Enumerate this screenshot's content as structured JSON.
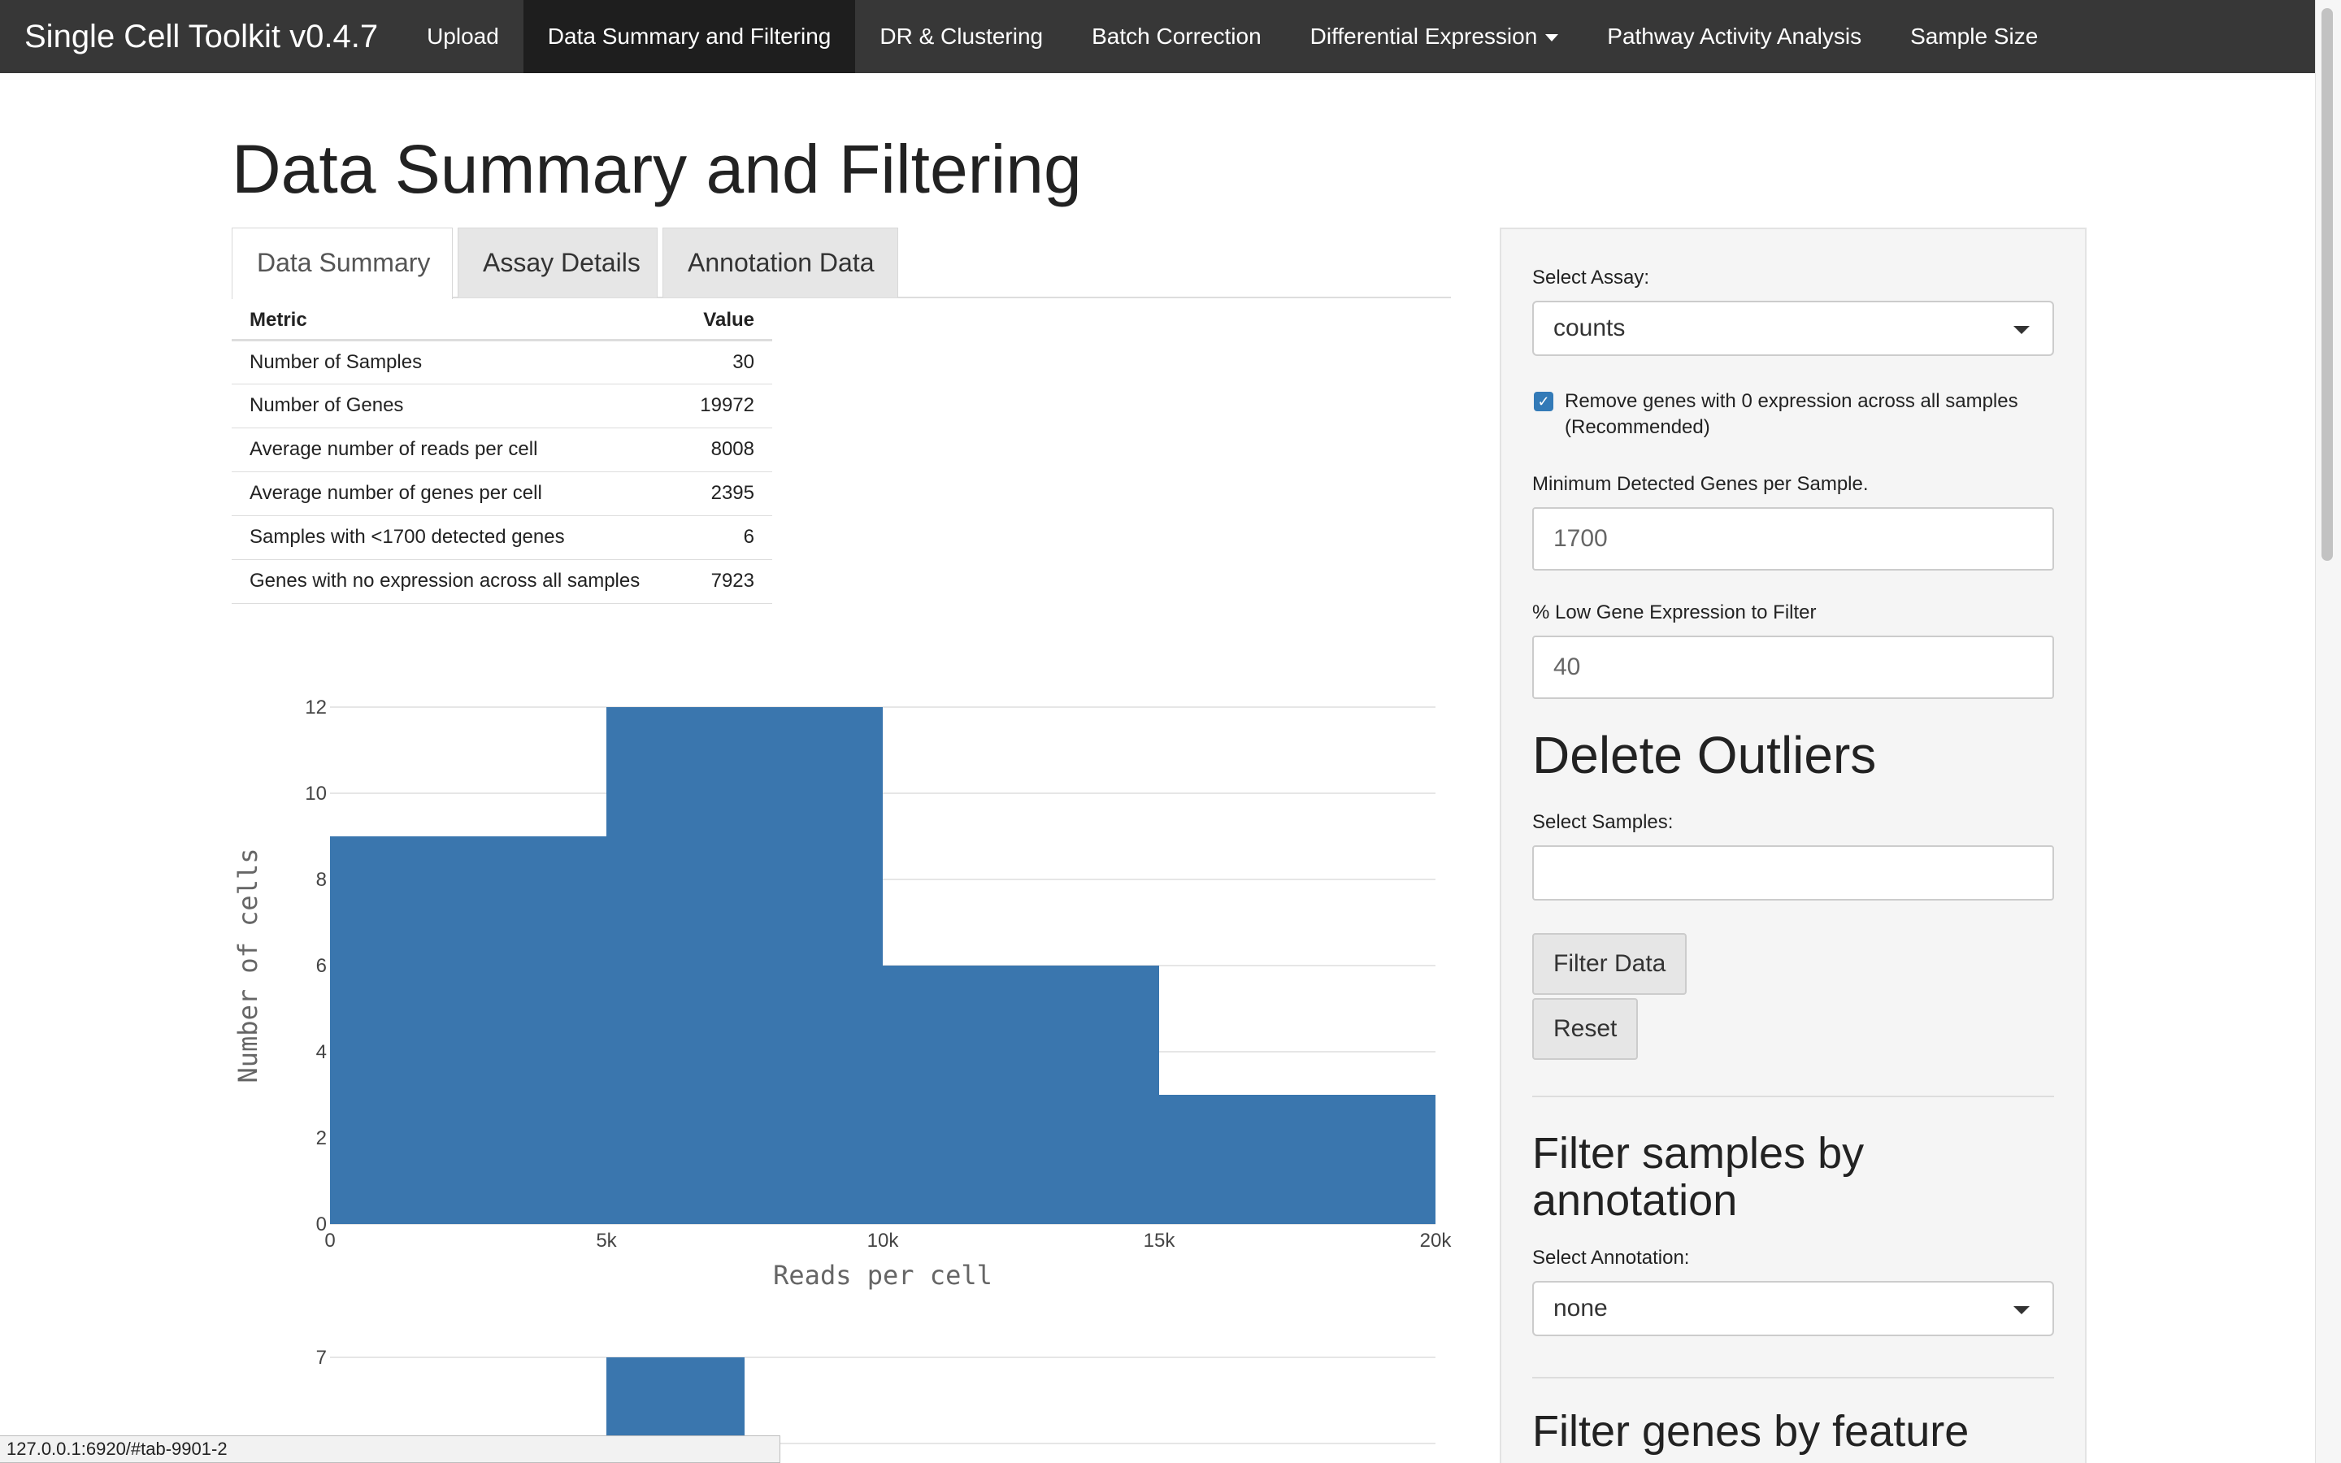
{
  "navbar": {
    "brand": "Single Cell Toolkit v0.4.7",
    "items": [
      {
        "label": "Upload"
      },
      {
        "label": "Data Summary and Filtering"
      },
      {
        "label": "DR & Clustering"
      },
      {
        "label": "Batch Correction"
      },
      {
        "label": "Differential Expression"
      },
      {
        "label": "Pathway Activity Analysis"
      },
      {
        "label": "Sample Size"
      }
    ],
    "active_item": "Data Summary and Filtering"
  },
  "page": {
    "title": "Data Summary and Filtering"
  },
  "tabs": [
    {
      "label": "Data Summary",
      "active": true
    },
    {
      "label": "Assay Details",
      "active": false
    },
    {
      "label": "Annotation Data",
      "active": false
    }
  ],
  "summary": {
    "headers": {
      "metric": "Metric",
      "value": "Value"
    },
    "rows": [
      {
        "metric": "Number of Samples",
        "value": "30"
      },
      {
        "metric": "Number of Genes",
        "value": "19972"
      },
      {
        "metric": "Average number of reads per cell",
        "value": "8008"
      },
      {
        "metric": "Average number of genes per cell",
        "value": "2395"
      },
      {
        "metric": "Samples with <1700 detected genes",
        "value": "6"
      },
      {
        "metric": "Genes with no expression across all samples",
        "value": "7923"
      }
    ]
  },
  "chart_data": [
    {
      "type": "bar",
      "title": "",
      "xlabel": "Reads per cell",
      "ylabel": "Number of cells",
      "bins": [
        [
          0,
          5000
        ],
        [
          5000,
          10000
        ],
        [
          10000,
          15000
        ],
        [
          15000,
          20000
        ]
      ],
      "values": [
        9,
        12,
        6,
        3
      ],
      "xlim": [
        0,
        20000
      ],
      "ylim": [
        0,
        12
      ],
      "xticks": [
        0,
        5000,
        10000,
        15000,
        20000
      ],
      "xtick_labels": [
        "0",
        "5k",
        "10k",
        "15k",
        "20k"
      ],
      "yticks": [
        0,
        2,
        4,
        6,
        8,
        10,
        12
      ],
      "color": "#3a76ae"
    },
    {
      "type": "bar",
      "partial": true,
      "bins": [
        [
          5000,
          7500
        ]
      ],
      "values": [
        7
      ],
      "visible_yticks": [
        6,
        7
      ],
      "color": "#3a76ae"
    }
  ],
  "sidebar": {
    "assay_label": "Select Assay:",
    "assay_value": "counts",
    "remove_genes_label": "Remove genes with 0 expression across all samples (Recommended)",
    "remove_genes_checked": true,
    "min_genes_label": "Minimum Detected Genes per Sample.",
    "min_genes_value": "1700",
    "low_expr_label": "% Low Gene Expression to Filter",
    "low_expr_value": "40",
    "delete_outliers_heading": "Delete Outliers",
    "select_samples_label": "Select Samples:",
    "filter_button": "Filter Data",
    "reset_button": "Reset",
    "filter_annotation_heading": "Filter samples by annotation",
    "select_annotation_label": "Select Annotation:",
    "annotation_value": "none",
    "filter_genes_heading": "Filter genes by feature"
  },
  "statusbar": {
    "url": "127.0.0.1:6920/#tab-9901-2"
  }
}
